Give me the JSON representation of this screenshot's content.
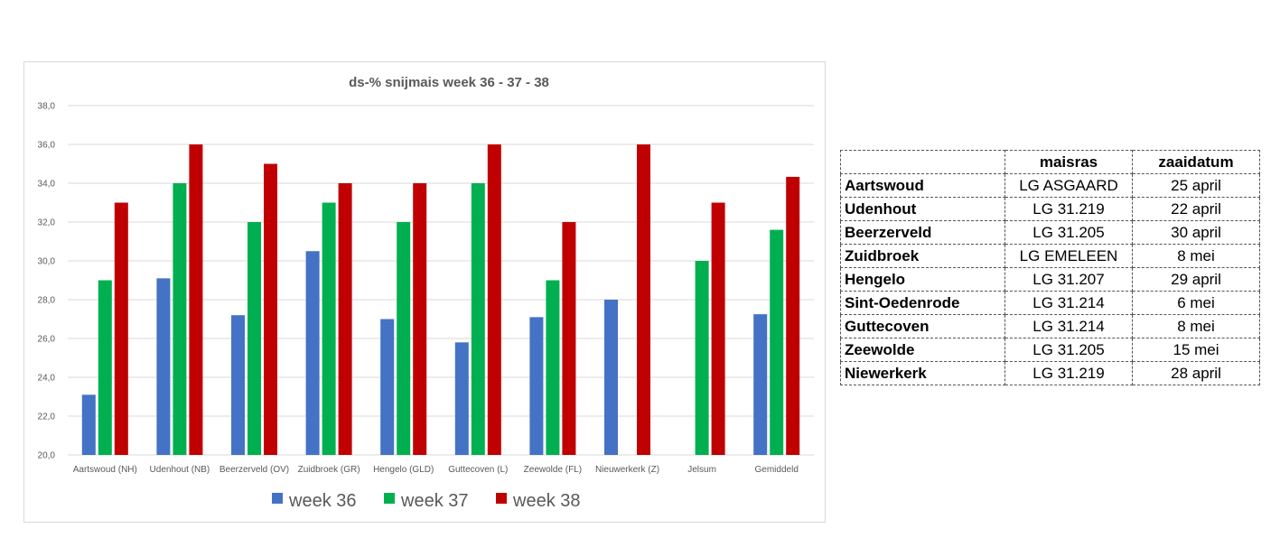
{
  "chart_data": {
    "type": "bar",
    "title": "ds-% snijmais week 36 - 37 - 38",
    "xlabel": "",
    "ylabel": "",
    "ylim": [
      20,
      38
    ],
    "yticks": [
      "20,0",
      "22,0",
      "24,0",
      "26,0",
      "28,0",
      "30,0",
      "32,0",
      "34,0",
      "36,0",
      "38,0"
    ],
    "grid": true,
    "legend_position": "bottom",
    "categories": [
      "Aartswoud (NH)",
      "Udenhout (NB)",
      "Beerzerveld (OV)",
      "Zuidbroek (GR)",
      "Hengelo (GLD)",
      "Guttecoven (L)",
      "Zeewolde (FL)",
      "Nieuwerkerk (Z)",
      "Jelsum",
      "Gemiddeld"
    ],
    "series": [
      {
        "name": "week 36",
        "color": "#4472c4",
        "values": [
          23.1,
          29.1,
          27.2,
          30.5,
          27.0,
          25.8,
          27.1,
          28.0,
          null,
          27.25
        ]
      },
      {
        "name": "week 37",
        "color": "#00b050",
        "values": [
          29.0,
          34.0,
          32.0,
          33.0,
          32.0,
          34.0,
          29.0,
          null,
          30.0,
          31.6
        ]
      },
      {
        "name": "week 38",
        "color": "#c00000",
        "values": [
          33.0,
          36.0,
          35.0,
          34.0,
          34.0,
          36.0,
          32.0,
          36.0,
          33.0,
          34.33
        ]
      }
    ]
  },
  "table": {
    "headers": [
      "",
      "maisras",
      "zaaidatum"
    ],
    "rows": [
      [
        "Aartswoud",
        "LG ASGAARD",
        "25 april"
      ],
      [
        "Udenhout",
        "LG 31.219",
        "22 april"
      ],
      [
        "Beerzerveld",
        "LG 31.205",
        "30 april"
      ],
      [
        "Zuidbroek",
        "LG EMELEEN",
        "8 mei"
      ],
      [
        "Hengelo",
        "LG 31.207",
        "29 april"
      ],
      [
        "Sint-Oedenrode",
        "LG 31.214",
        "6 mei"
      ],
      [
        "Guttecoven",
        "LG 31.214",
        "8 mei"
      ],
      [
        "Zeewolde",
        "LG 31.205",
        "15 mei"
      ],
      [
        "Niewerkerk",
        "LG 31.219",
        "28 april"
      ]
    ]
  }
}
